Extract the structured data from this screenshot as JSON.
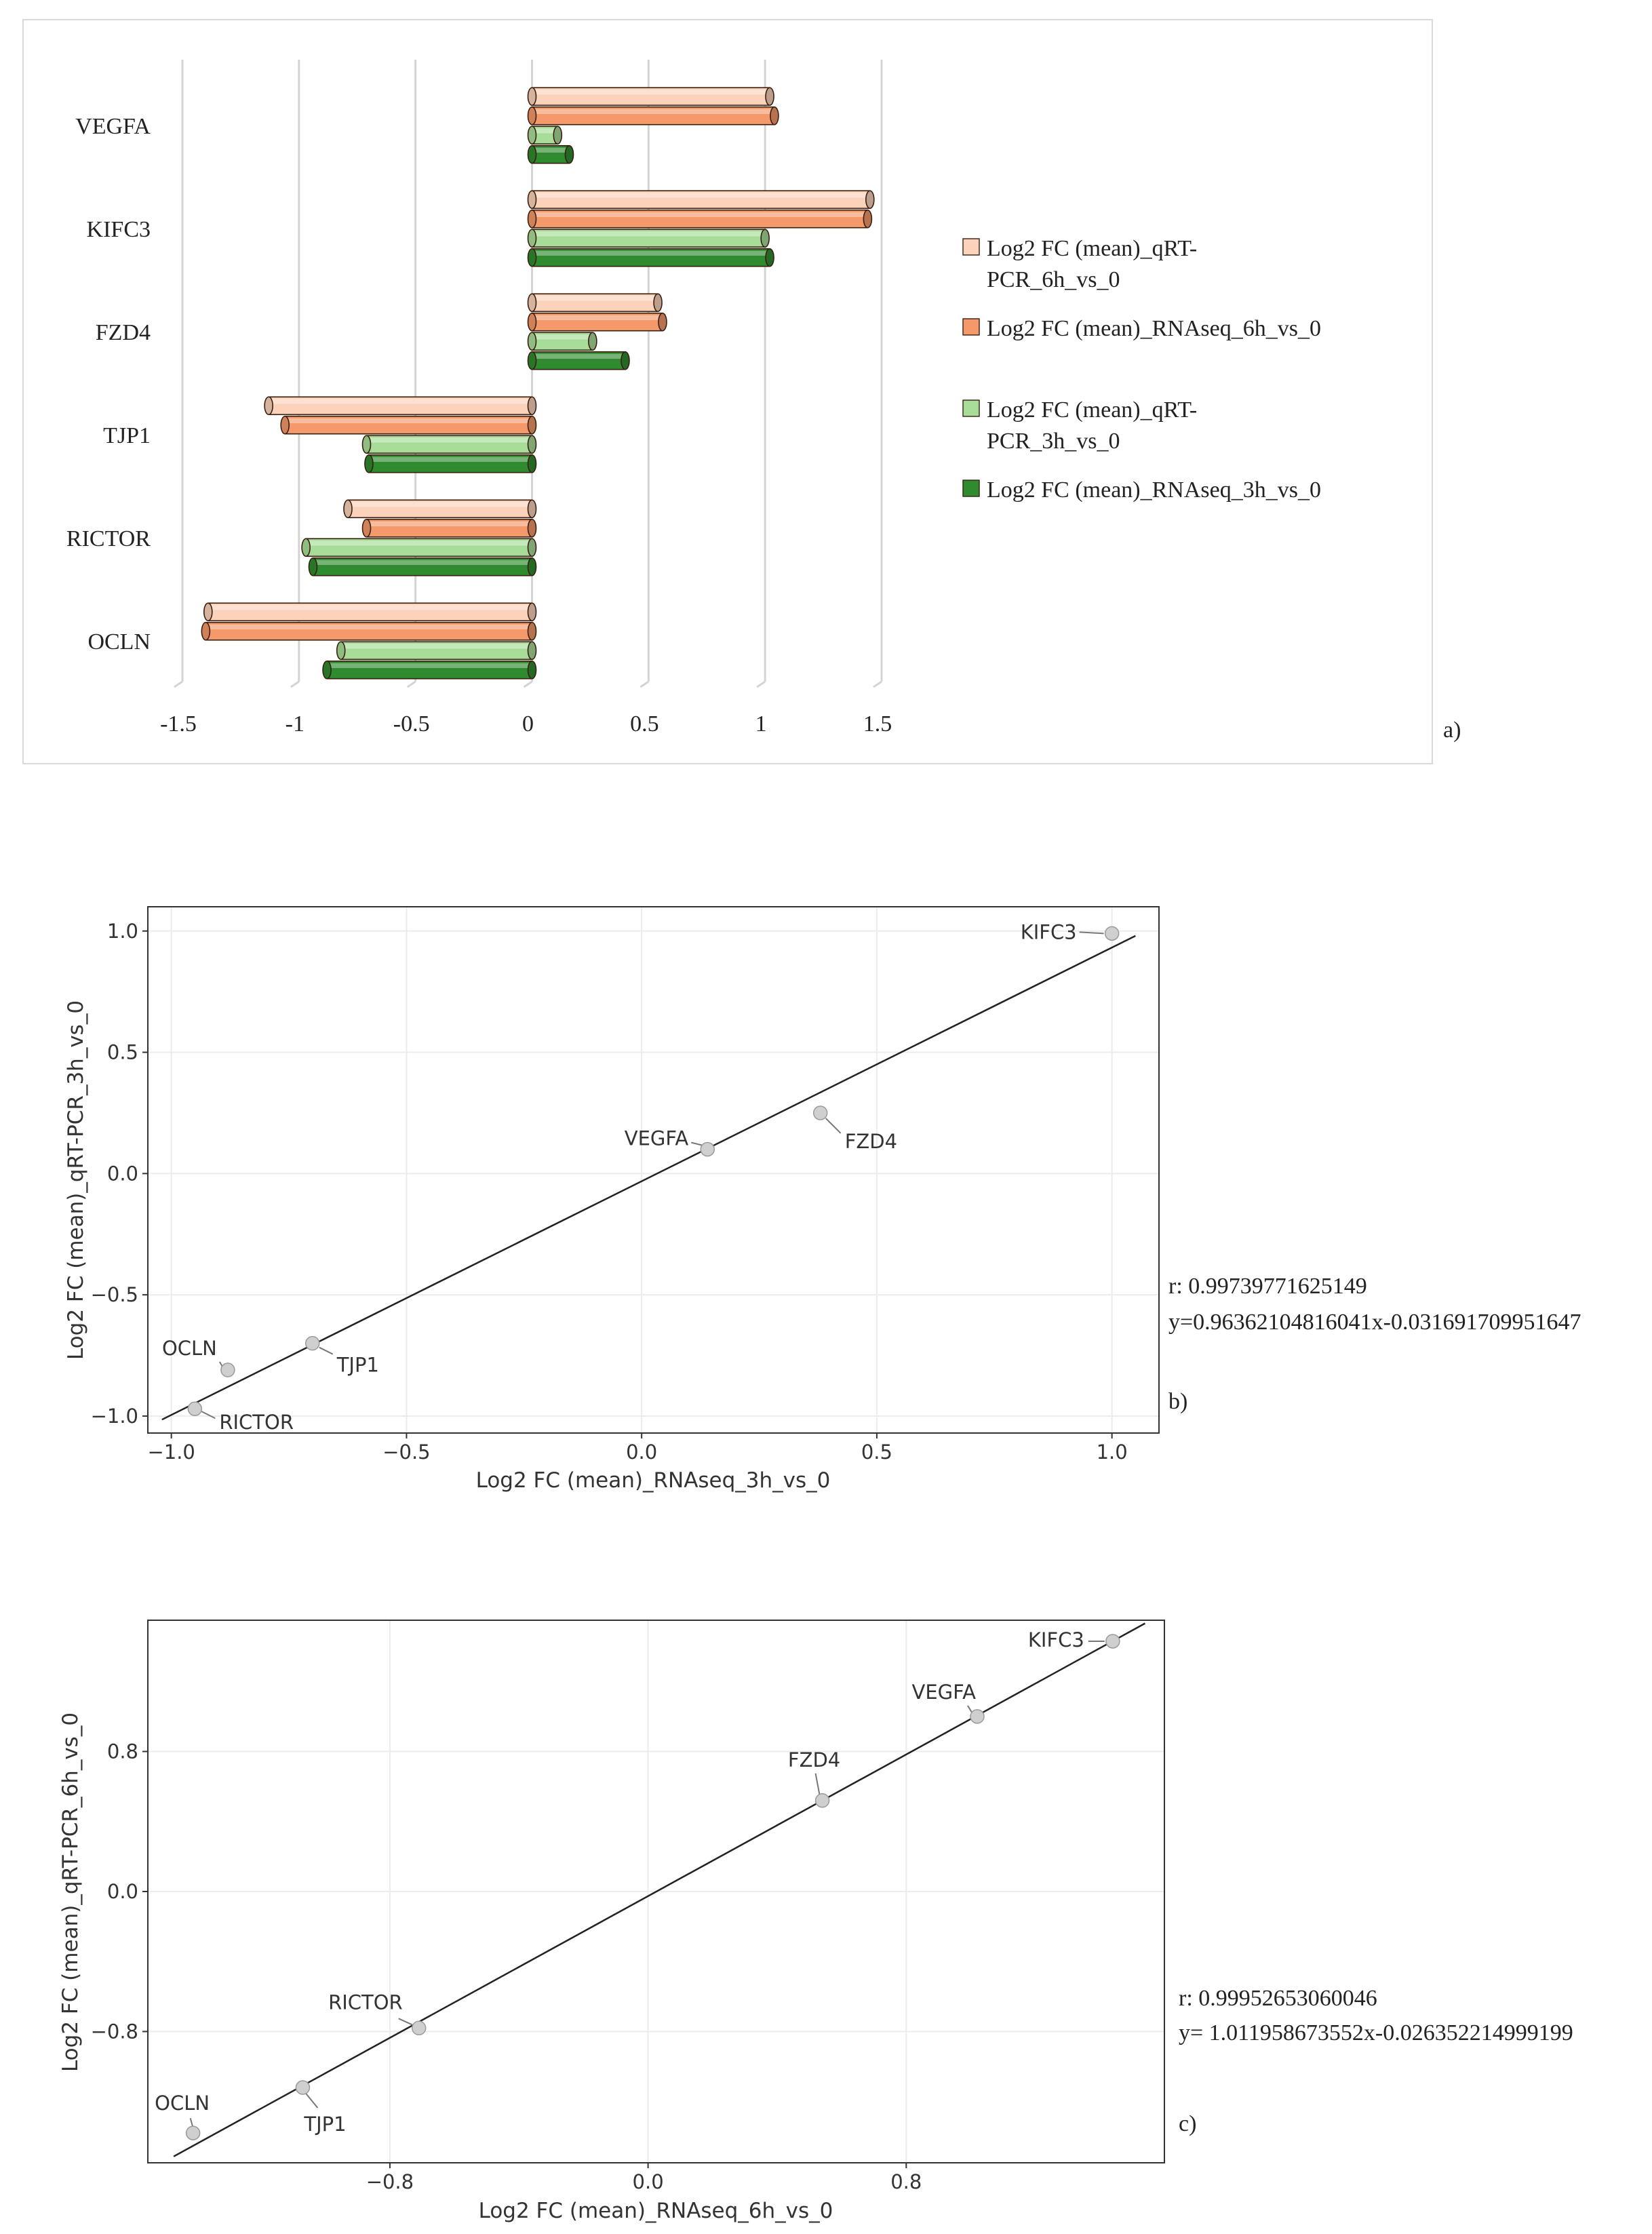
{
  "chart_data": [
    {
      "type": "bar",
      "orientation": "horizontal",
      "panel_label": "a)",
      "categories": [
        "VEGFA",
        "KIFC3",
        "FZD4",
        "TJP1",
        "RICTOR",
        "OCLN"
      ],
      "series": [
        {
          "name": "Log2 FC (mean)_qRT-PCR_6h_vs_0",
          "legend_lines": [
            "Log2 FC (mean)_qRT-",
            "PCR_6h_vs_0"
          ],
          "color": "#fbd3bb",
          "values": [
            1.02,
            1.45,
            0.54,
            -1.13,
            -0.79,
            -1.39
          ]
        },
        {
          "name": "Log2 FC (mean)_RNAseq_6h_vs_0",
          "legend_lines": [
            "Log2 FC (mean)_RNAseq_6h_vs_0"
          ],
          "color": "#f4996a",
          "values": [
            1.04,
            1.44,
            0.56,
            -1.06,
            -0.71,
            -1.4
          ]
        },
        {
          "name": "Log2 FC (mean)_qRT-PCR_3h_vs_0",
          "legend_lines": [
            "Log2 FC (mean)_qRT-",
            "PCR_3h_vs_0"
          ],
          "color": "#a7dd98",
          "values": [
            0.11,
            1.0,
            0.26,
            -0.71,
            -0.97,
            -0.82
          ]
        },
        {
          "name": "Log2 FC (mean)_RNAseq_3h_vs_0",
          "legend_lines": [
            "Log2 FC (mean)_RNAseq_3h_vs_0"
          ],
          "color": "#2e8b2e",
          "values": [
            0.16,
            1.02,
            0.4,
            -0.7,
            -0.94,
            -0.88
          ]
        }
      ],
      "xlim": [
        -1.5,
        1.5
      ],
      "xticks": [
        -1.5,
        -1,
        -0.5,
        0,
        0.5,
        1,
        1.5
      ],
      "xtick_labels": [
        "-1.5",
        "-1",
        "-0.5",
        "0",
        "0.5",
        "1",
        "1.5"
      ],
      "grid": true,
      "legend": "right"
    },
    {
      "type": "scatter",
      "panel_label": "b)",
      "xlabel": "Log2 FC (mean)_RNAseq_3h_vs_0",
      "ylabel": "Log2 FC (mean)_qRT-PCR_3h_vs_0",
      "xlim": [
        -1.05,
        1.1
      ],
      "ylim": [
        -1.07,
        1.1
      ],
      "xticks": [
        -1.0,
        -0.5,
        0.0,
        0.5,
        1.0
      ],
      "xtick_labels": [
        "−1.0",
        "−0.5",
        "0.0",
        "0.5",
        "1.0"
      ],
      "yticks": [
        -1.0,
        -0.5,
        0.0,
        0.5,
        1.0
      ],
      "ytick_labels": [
        "−1.0",
        "−0.5",
        "0.0",
        "0.5",
        "1.0"
      ],
      "points": [
        {
          "label": "KIFC3",
          "x": 1.0,
          "y": 0.99
        },
        {
          "label": "VEGFA",
          "x": 0.14,
          "y": 0.1
        },
        {
          "label": "FZD4",
          "x": 0.38,
          "y": 0.25
        },
        {
          "label": "TJP1",
          "x": -0.7,
          "y": -0.7
        },
        {
          "label": "OCLN",
          "x": -0.88,
          "y": -0.81
        },
        {
          "label": "RICTOR",
          "x": -0.95,
          "y": -0.97
        }
      ],
      "fit_line": {
        "slope": 0.96362104816041,
        "intercept": -0.031691709951647,
        "x_from": -1.02,
        "x_to": 1.05
      },
      "annotations": [
        "r: 0.99739771625149",
        "y=0.96362104816041x-0.031691709951647"
      ],
      "grid": true
    },
    {
      "type": "scatter",
      "panel_label": "c)",
      "xlabel": "Log2 FC (mean)_RNAseq_6h_vs_0",
      "ylabel": "Log2 FC (mean)_qRT-PCR_6h_vs_0",
      "xlim": [
        -1.55,
        1.6
      ],
      "ylim": [
        -1.55,
        1.55
      ],
      "xticks": [
        -0.8,
        0.0,
        0.8
      ],
      "xtick_labels": [
        "−0.8",
        "0.0",
        "0.8"
      ],
      "yticks": [
        -0.8,
        0.0,
        0.8
      ],
      "ytick_labels": [
        "−0.8",
        "0.0",
        "0.8"
      ],
      "points": [
        {
          "label": "KIFC3",
          "x": 1.44,
          "y": 1.43
        },
        {
          "label": "VEGFA",
          "x": 1.02,
          "y": 1.0
        },
        {
          "label": "FZD4",
          "x": 0.54,
          "y": 0.52
        },
        {
          "label": "RICTOR",
          "x": -0.71,
          "y": -0.78
        },
        {
          "label": "TJP1",
          "x": -1.07,
          "y": -1.12
        },
        {
          "label": "OCLN",
          "x": -1.41,
          "y": -1.38
        }
      ],
      "fit_line": {
        "slope": 1.011958673552,
        "intercept": -0.026352214999199,
        "x_from": -1.47,
        "x_to": 1.54
      },
      "annotations": [
        "r: 0.99952653060046",
        "y= 1.011958673552x-0.026352214999199"
      ],
      "grid": true
    }
  ]
}
